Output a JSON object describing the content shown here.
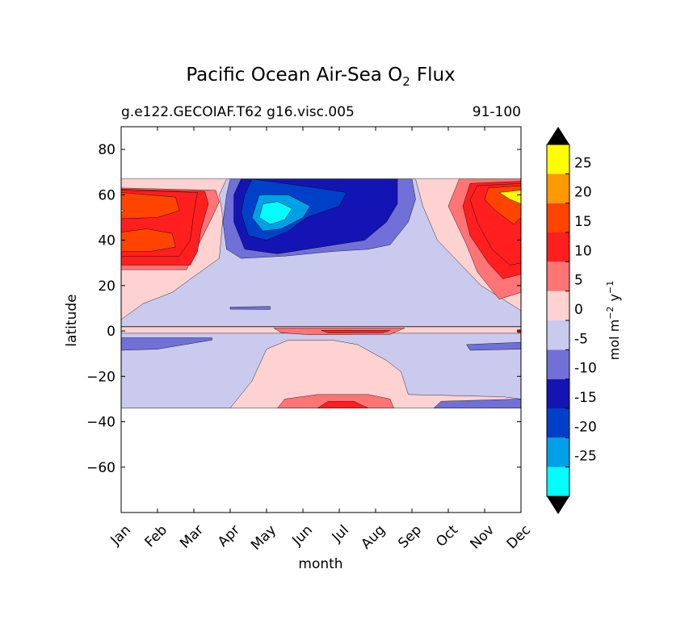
{
  "chart_data": {
    "type": "heatmap",
    "title": "Pacific Ocean Air-Sea O",
    "title_subscript": "2",
    "title_suffix": "Flux",
    "subtitle_left": "g.e122.GECOIAF.T62 g16.visc.005",
    "subtitle_right": "91-100",
    "xlabel": "month",
    "ylabel": "latitude",
    "x_tick_labels": [
      "Jan",
      "Feb",
      "Mar",
      "Apr",
      "May",
      "Jun",
      "Jul",
      "Aug",
      "Sep",
      "Oct",
      "Nov",
      "Dec"
    ],
    "y_ticks": [
      80,
      60,
      40,
      20,
      0,
      -20,
      -40,
      -60
    ],
    "y_tick_labels": [
      "80",
      "60",
      "40",
      "20",
      "0",
      "−20",
      "−40",
      "−60"
    ],
    "ylim": [
      -80,
      90
    ],
    "xlim": [
      0,
      11
    ],
    "data_lat_range": [
      -34,
      67
    ],
    "colorbar": {
      "label": "mol m",
      "label_exp1": "−2",
      "label_mid": "y",
      "label_exp2": "−1",
      "levels": [
        -30,
        -25,
        -20,
        -15,
        -10,
        -5,
        0,
        5,
        10,
        15,
        20,
        25,
        30
      ],
      "tick_labels": [
        "25",
        "20",
        "15",
        "10",
        "5",
        "0",
        "-5",
        "-10",
        "-15",
        "-20",
        "-25"
      ],
      "colors": [
        "#00ffff",
        "#00a0e6",
        "#0040c8",
        "#1414b4",
        "#7070d8",
        "#cacaee",
        "#ffd2d2",
        "#ff7474",
        "#ff1f1f",
        "#ff4400",
        "#ff9900",
        "#ffff00"
      ],
      "extend": "both",
      "extend_color": "#000000"
    },
    "regions": {
      "background": 0,
      "neg_band_north": -5,
      "neg_core_north": -10,
      "neg_center_north": -15,
      "neg_peak_north": -25,
      "pos_north_jan": 15,
      "pos_north_dec": 15,
      "pos_south_jul": 10,
      "neg_band_south": -5,
      "equator_pos": 5
    }
  }
}
